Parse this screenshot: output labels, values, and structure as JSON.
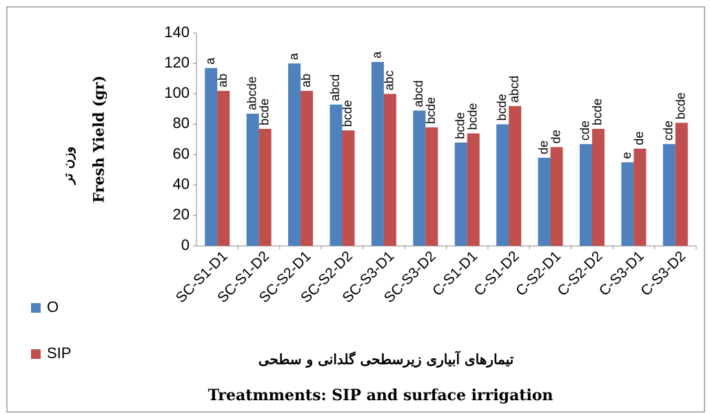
{
  "chart_data": {
    "type": "bar",
    "ylabel": "Fresh Yield (gr)",
    "ylabel_secondary": "وزن تر",
    "xlabel_secondary": "تیمارهای آبیاری زیرسطحی گلدانی و سطحی",
    "xlabel": "Treatmments: SIP and surface irrigation",
    "categories": [
      "SC-S1-D1",
      "SC-S1-D2",
      "SC-S2-D1",
      "SC-S2-D2",
      "SC-S3-D1",
      "SC-S3-D2",
      "C-S1-D1",
      "C-S1-D2",
      "C-S2-D1",
      "C-S2-D2",
      "C-S3-D1",
      "C-S3-D2"
    ],
    "series": [
      {
        "name": "O",
        "color": "#4f81bd",
        "values": [
          117,
          87,
          120,
          93,
          121,
          89,
          68,
          80,
          58,
          67,
          55,
          67
        ],
        "letters": [
          "a",
          "abcde",
          "a",
          "abcd",
          "a",
          "abcd",
          "bcde",
          "bcde",
          "de",
          "cde",
          "e",
          "cde"
        ]
      },
      {
        "name": "SIP",
        "color": "#c0504d",
        "values": [
          102,
          77,
          102,
          76,
          100,
          78,
          74,
          92,
          65,
          77,
          64,
          81
        ],
        "letters": [
          "ab",
          "bcde",
          "ab",
          "bcde",
          "abc",
          "bcde",
          "bcde",
          "abcd",
          "de",
          "bcde",
          "de",
          "bcde"
        ]
      }
    ],
    "ylim": [
      0,
      140
    ],
    "yticks": [
      0,
      20,
      40,
      60,
      80,
      100,
      120,
      140
    ]
  }
}
